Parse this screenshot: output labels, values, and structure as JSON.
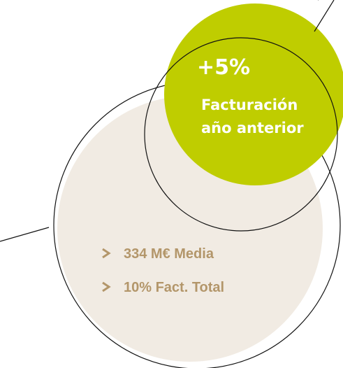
{
  "highlight": {
    "value": "+5%",
    "label_line1": "Facturación",
    "label_line2": "año anterior"
  },
  "bullets": [
    "334 M€ Media",
    "10% Fact. Total"
  ]
}
